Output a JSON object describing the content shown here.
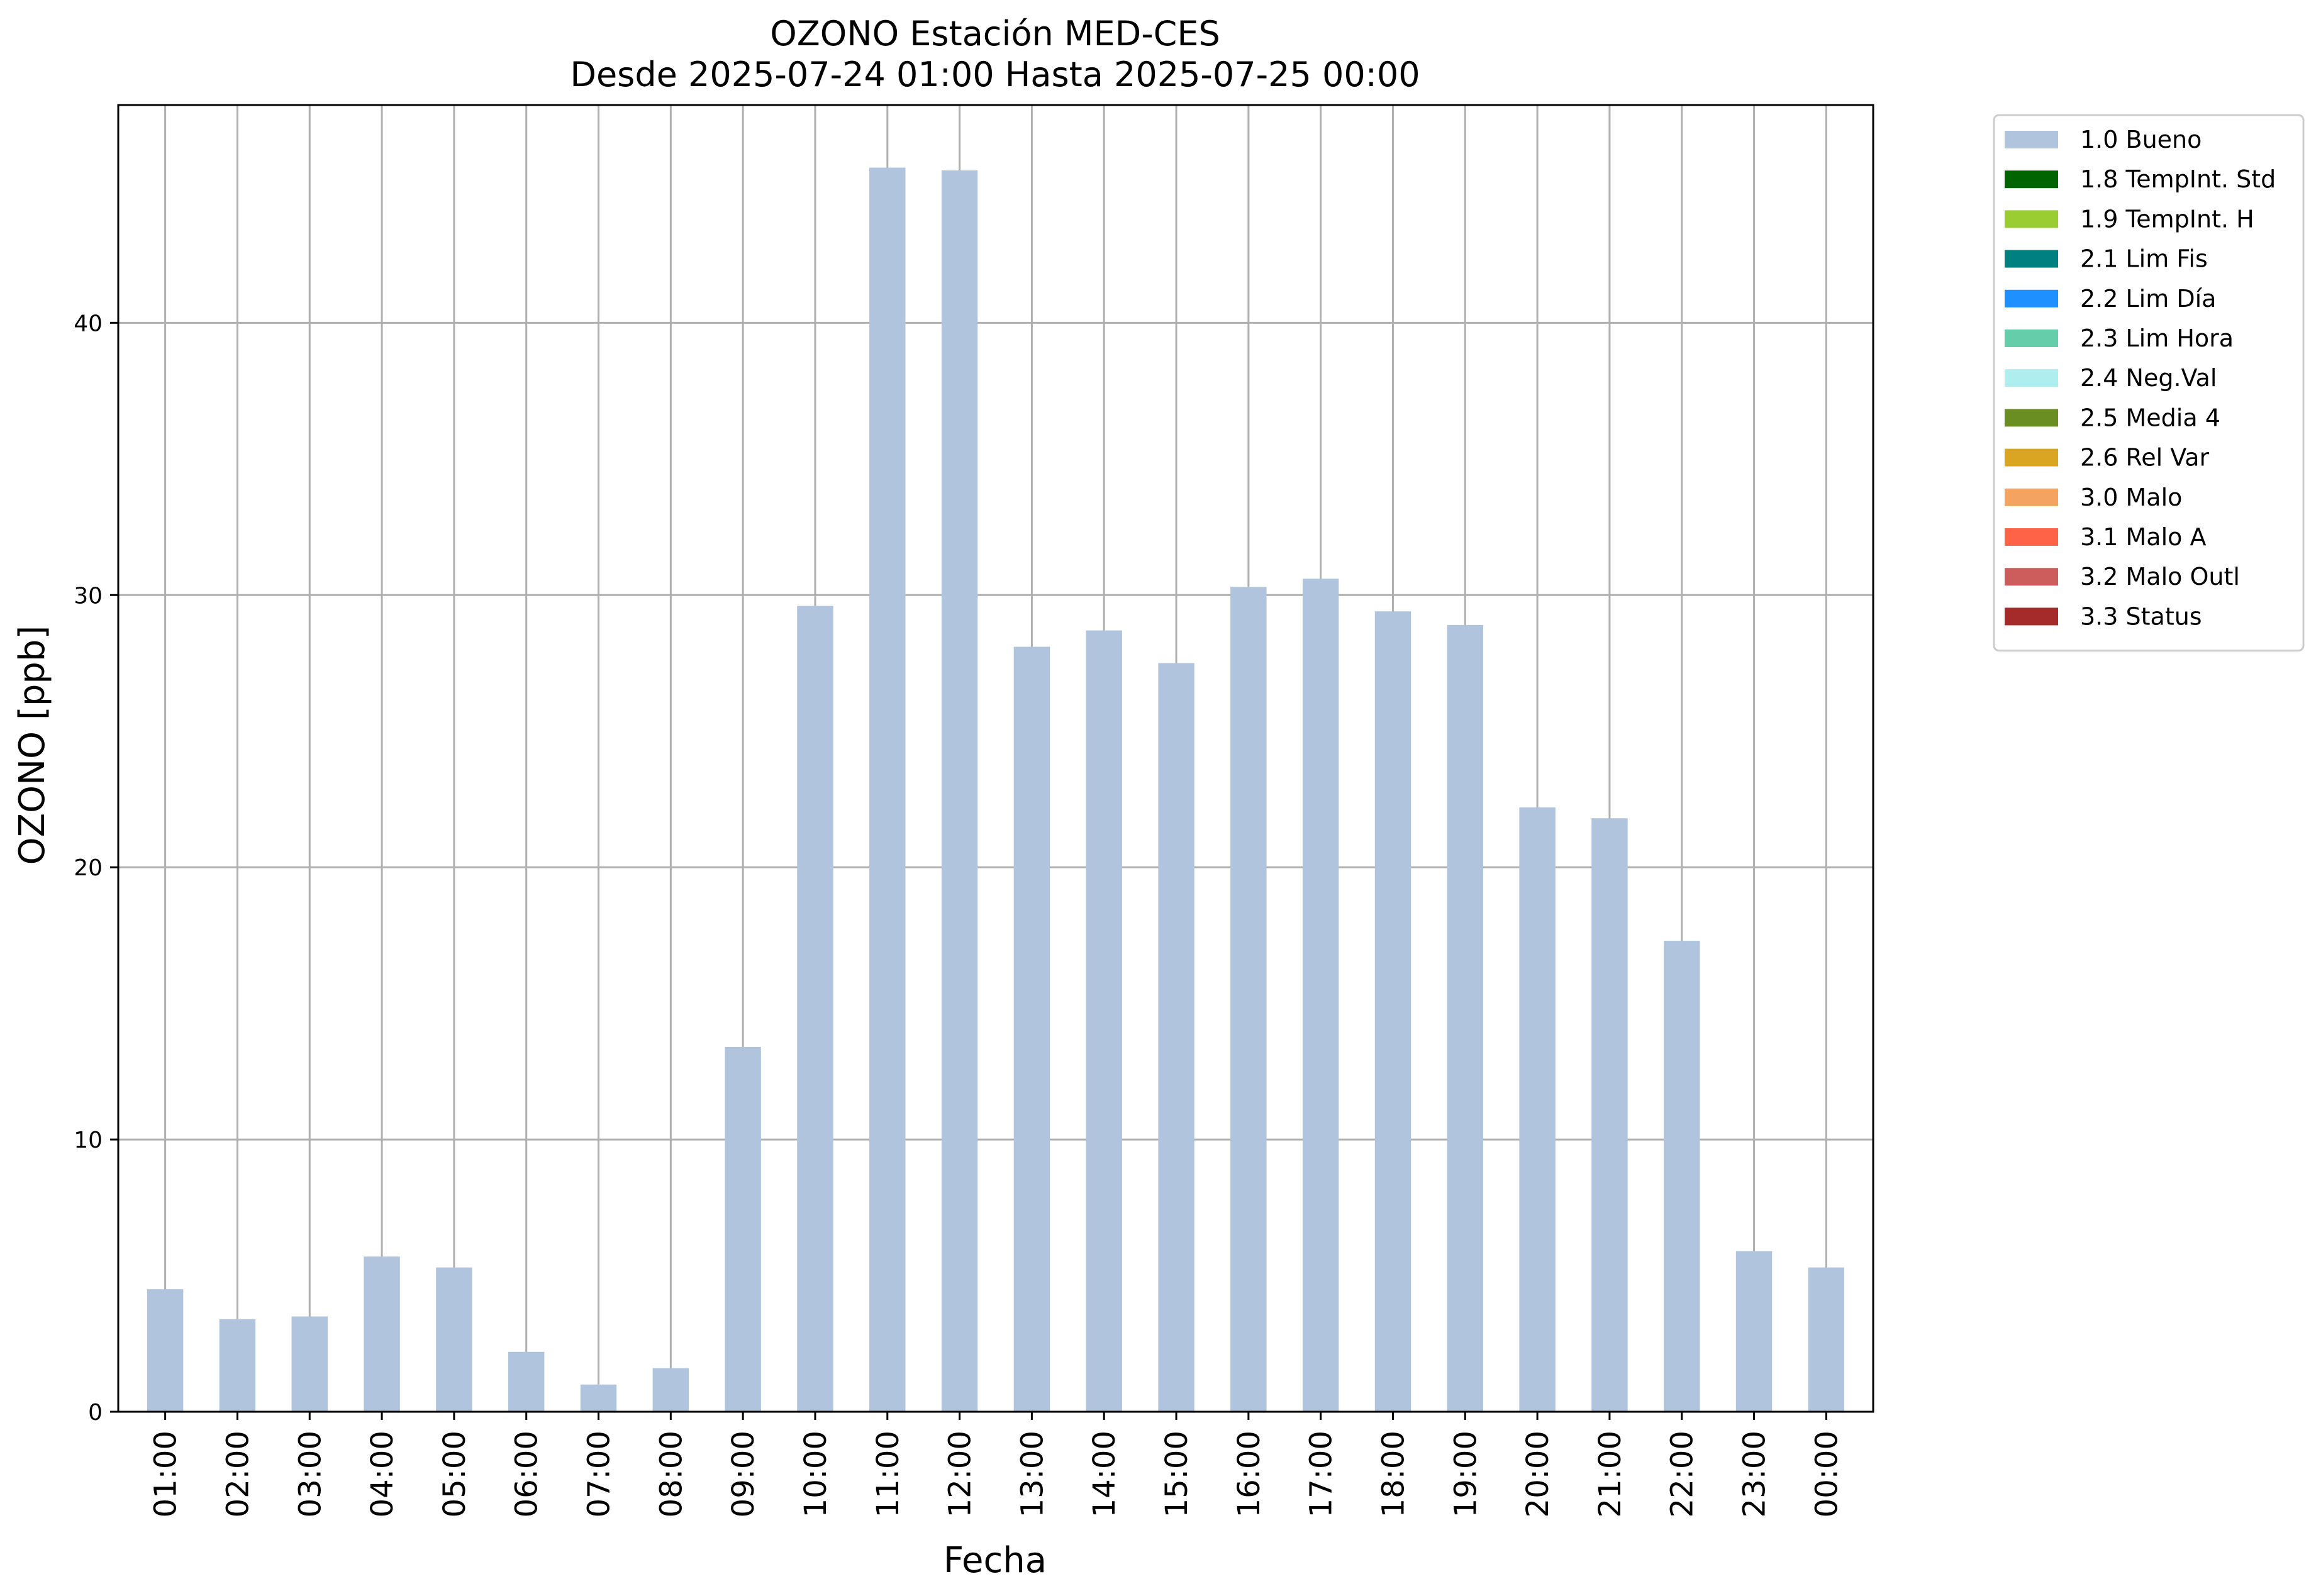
{
  "chart_data": {
    "type": "bar",
    "title": "OZONO Estación MED-CES",
    "subtitle": "Desde 2025-07-24 01:00 Hasta 2025-07-25 00:00",
    "xlabel": "Fecha",
    "ylabel": "OZONO [ppb]",
    "ylim": [
      0,
      48
    ],
    "yticks": [
      0,
      10,
      20,
      30,
      40
    ],
    "grid": true,
    "legend_position": "outside-top-right",
    "categories": [
      "01:00",
      "02:00",
      "03:00",
      "04:00",
      "05:00",
      "06:00",
      "07:00",
      "08:00",
      "09:00",
      "10:00",
      "11:00",
      "12:00",
      "13:00",
      "14:00",
      "15:00",
      "16:00",
      "17:00",
      "18:00",
      "19:00",
      "20:00",
      "21:00",
      "22:00",
      "23:00",
      "00:00"
    ],
    "series": [
      {
        "name": "1.0 Bueno",
        "color": "#b0c4de",
        "values": [
          4.5,
          3.4,
          3.5,
          5.7,
          5.3,
          2.2,
          1.0,
          1.6,
          13.4,
          29.6,
          45.7,
          45.6,
          28.1,
          28.7,
          27.5,
          30.3,
          30.6,
          29.4,
          28.9,
          22.2,
          21.8,
          17.3,
          5.9,
          5.3
        ]
      }
    ],
    "legend": [
      {
        "label": "1.0 Bueno",
        "color": "#b0c4de"
      },
      {
        "label": "1.8 TempInt. Std",
        "color": "#006400"
      },
      {
        "label": "1.9 TempInt. H",
        "color": "#9acd32"
      },
      {
        "label": "2.1 Lim Fis",
        "color": "#008080"
      },
      {
        "label": "2.2 Lim Día",
        "color": "#1e90ff"
      },
      {
        "label": "2.3 Lim Hora",
        "color": "#66cdaa"
      },
      {
        "label": "2.4 Neg.Val",
        "color": "#afeeee"
      },
      {
        "label": "2.5 Media 4",
        "color": "#6b8e23"
      },
      {
        "label": "2.6 Rel Var",
        "color": "#daa520"
      },
      {
        "label": "3.0 Malo",
        "color": "#f4a460"
      },
      {
        "label": "3.1 Malo A",
        "color": "#ff6347"
      },
      {
        "label": "3.2 Malo Outl",
        "color": "#cd5c5c"
      },
      {
        "label": "3.3 Status",
        "color": "#a52a2a"
      }
    ]
  }
}
